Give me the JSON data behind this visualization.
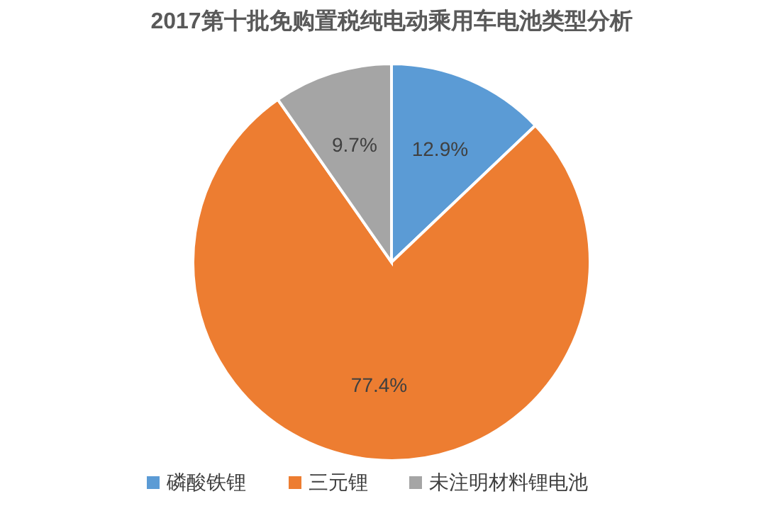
{
  "chart_data": {
    "type": "pie",
    "title": "2017第十批免购置税纯电动乘用车电池类型分析",
    "categories": [
      "磷酸铁锂",
      "三元锂",
      "未注明材料锂电池"
    ],
    "values": [
      12.9,
      77.4,
      9.7
    ],
    "colors": [
      "#5b9bd5",
      "#ed7d31",
      "#a5a5a5"
    ],
    "value_labels": [
      "12.9%",
      "77.4%",
      "9.7%"
    ],
    "legend": "bottom"
  }
}
